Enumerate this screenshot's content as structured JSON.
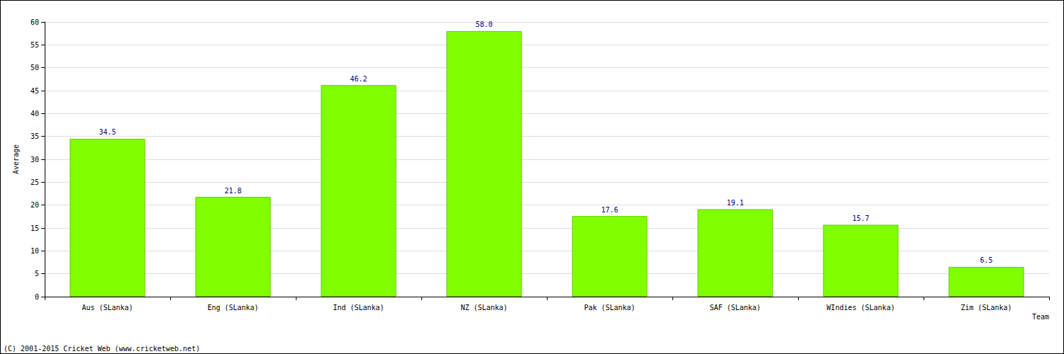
{
  "chart_data": {
    "type": "bar",
    "categories": [
      "Aus (SLanka)",
      "Eng (SLanka)",
      "Ind (SLanka)",
      "NZ (SLanka)",
      "Pak (SLanka)",
      "SAF (SLanka)",
      "WIndies (SLanka)",
      "Zim (SLanka)"
    ],
    "values": [
      34.5,
      21.8,
      46.2,
      58.0,
      17.6,
      19.1,
      15.7,
      6.5
    ],
    "value_labels": [
      "34.5",
      "21.8",
      "46.2",
      "58.0",
      "17.6",
      "19.1",
      "15.7",
      "6.5"
    ],
    "color": "#80ff00",
    "x_label": "Team",
    "y_label": "Average",
    "annotations": [
      "(C) 2001-2015 Cricket Web (www.cricketweb.net)"
    ],
    "ylim": [
      0,
      60
    ],
    "yticks": [
      0,
      5,
      10,
      15,
      20,
      25,
      30,
      35,
      40,
      45,
      50,
      55,
      60
    ],
    "grid": true,
    "data_labels": true
  }
}
